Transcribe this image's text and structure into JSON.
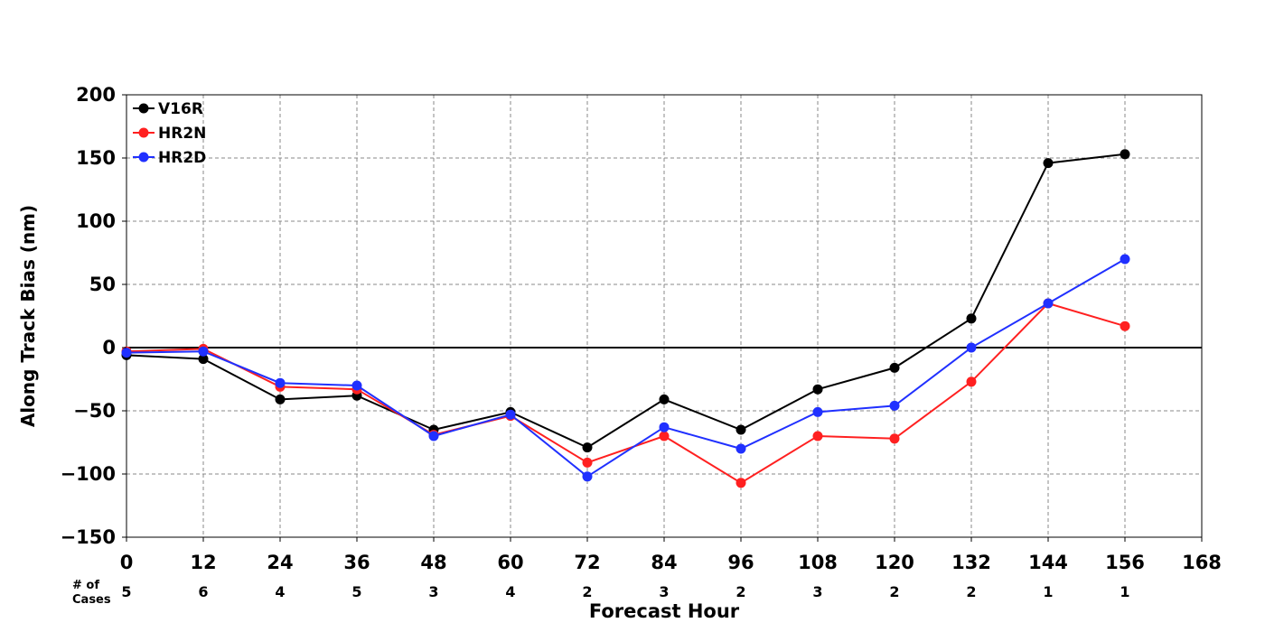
{
  "chart_data": {
    "type": "line",
    "xlabel": "Forecast Hour",
    "ylabel": "Along Track Bias (nm)",
    "x_ticks": [
      0,
      12,
      24,
      36,
      48,
      60,
      72,
      84,
      96,
      108,
      120,
      132,
      144,
      156,
      168
    ],
    "y_ticks": [
      -150,
      -100,
      -50,
      0,
      50,
      100,
      150,
      200
    ],
    "xlim": [
      0,
      168
    ],
    "ylim": [
      -150,
      200
    ],
    "grid": true,
    "legend_position": "top-left",
    "cases_label": "# of\nCases",
    "cases": [
      {
        "x": 0,
        "n": "5"
      },
      {
        "x": 12,
        "n": "6"
      },
      {
        "x": 24,
        "n": "4"
      },
      {
        "x": 36,
        "n": "5"
      },
      {
        "x": 48,
        "n": "3"
      },
      {
        "x": 60,
        "n": "4"
      },
      {
        "x": 72,
        "n": "2"
      },
      {
        "x": 84,
        "n": "3"
      },
      {
        "x": 96,
        "n": "2"
      },
      {
        "x": 108,
        "n": "3"
      },
      {
        "x": 120,
        "n": "2"
      },
      {
        "x": 132,
        "n": "2"
      },
      {
        "x": 144,
        "n": "1"
      },
      {
        "x": 156,
        "n": "1"
      }
    ],
    "x": [
      0,
      12,
      24,
      36,
      48,
      60,
      72,
      84,
      96,
      108,
      120,
      132,
      144,
      156
    ],
    "series": [
      {
        "name": "V16R",
        "color": "#000000",
        "values": [
          -6,
          -9,
          -41,
          -38,
          -65,
          -51,
          -79,
          -41,
          -65,
          -33,
          -16,
          23,
          146,
          153
        ]
      },
      {
        "name": "HR2N",
        "color": "#ff2020",
        "values": [
          -3,
          -1,
          -31,
          -33,
          -69,
          -54,
          -91,
          -70,
          -107,
          -70,
          -72,
          -27,
          35,
          17
        ]
      },
      {
        "name": "HR2D",
        "color": "#2030ff",
        "values": [
          -4,
          -3,
          -28,
          -30,
          -70,
          -53,
          -102,
          -63,
          -80,
          -51,
          -46,
          0,
          35,
          70
        ]
      }
    ]
  }
}
